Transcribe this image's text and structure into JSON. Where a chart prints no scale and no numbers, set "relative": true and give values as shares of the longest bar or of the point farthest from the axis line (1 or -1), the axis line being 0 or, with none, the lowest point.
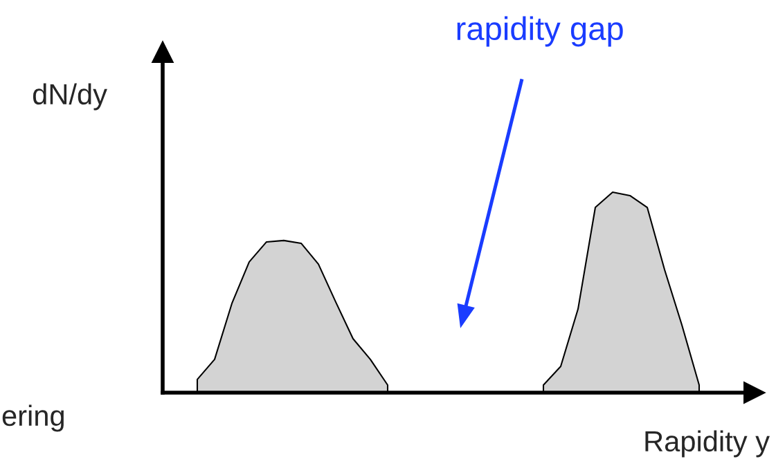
{
  "chart_data": {
    "type": "area",
    "relative": true,
    "xlabel": "Rapidity y",
    "ylabel": "dN/dy",
    "annotations": [
      "rapidity gap",
      "ering"
    ],
    "categories": [
      null,
      null,
      null,
      null,
      null,
      null,
      null,
      null,
      null,
      null,
      null,
      null,
      null,
      null,
      null,
      null,
      null,
      null,
      null,
      null,
      null,
      null,
      null,
      null,
      null,
      null,
      null,
      null,
      null,
      null,
      null,
      null,
      null,
      null,
      null
    ],
    "series": [
      {
        "color": "#d3d3d3",
        "values": [
          null,
          null,
          0.066,
          0.166,
          0.445,
          0.652,
          0.752,
          0.759,
          0.745,
          0.641,
          0.452,
          0.269,
          0.166,
          0.038,
          null,
          null,
          null,
          null,
          null,
          null,
          null,
          null,
          null,
          null,
          null,
          null,
          null,
          null,
          null,
          null,
          null,
          null,
          null,
          null,
          null
        ]
      },
      {
        "color": "#d3d3d3",
        "values": [
          null,
          null,
          null,
          null,
          null,
          null,
          null,
          null,
          null,
          null,
          null,
          null,
          null,
          null,
          null,
          null,
          null,
          null,
          null,
          null,
          null,
          null,
          0.038,
          0.131,
          0.417,
          0.924,
          1.0,
          0.983,
          0.924,
          0.614,
          0.338,
          0.038,
          null,
          null,
          null
        ]
      }
    ],
    "grid": false,
    "legend": false
  }
}
